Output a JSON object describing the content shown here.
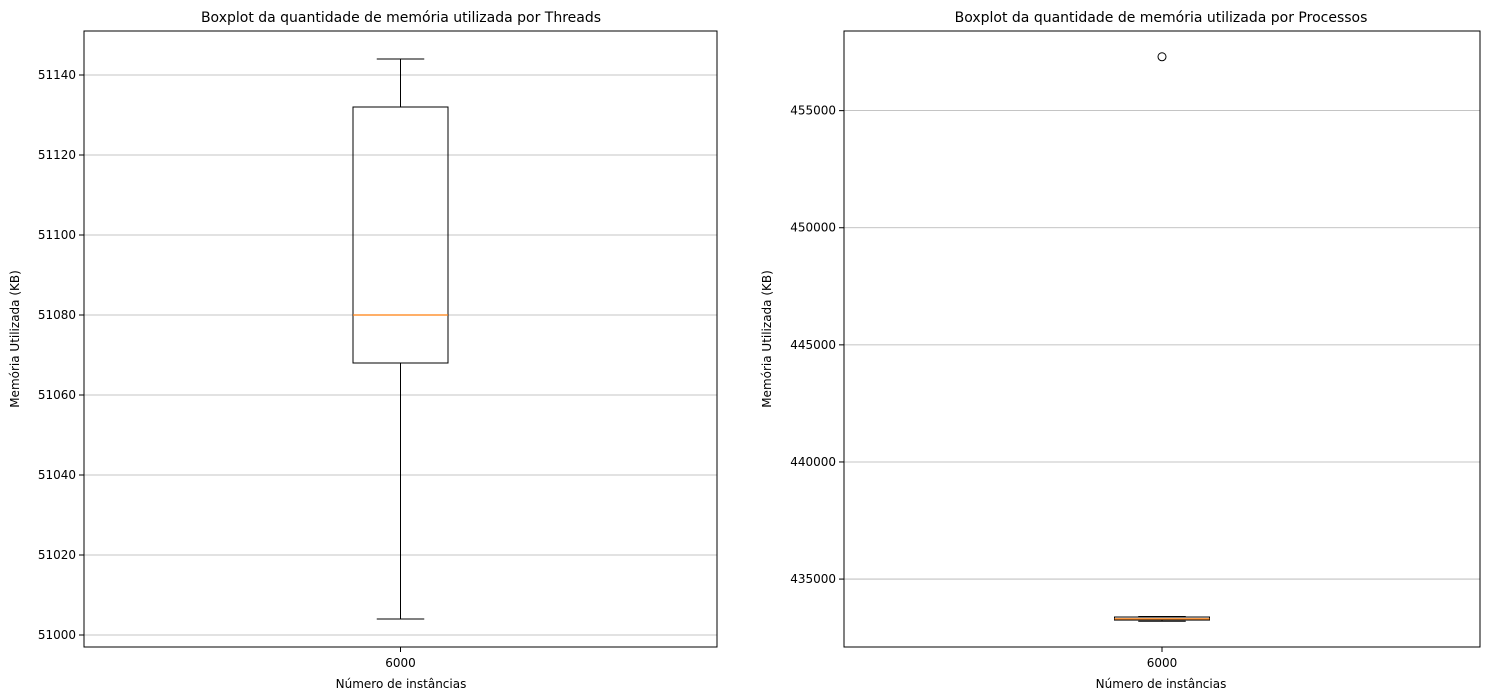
{
  "chart_data": [
    {
      "type": "boxplot",
      "title": "Boxplot da quantidade de memória utilizada por Threads",
      "xlabel": "Número de instâncias",
      "ylabel": "Memória Utilizada (KB)",
      "categories": [
        "6000"
      ],
      "ylim": [
        50997,
        51151
      ],
      "yticks": [
        51000,
        51020,
        51040,
        51060,
        51080,
        51100,
        51120,
        51140
      ],
      "grid": "y",
      "boxes": [
        {
          "category": "6000",
          "whisker_low": 51004,
          "q1": 51068,
          "median": 51080,
          "q3": 51132,
          "whisker_high": 51144,
          "outliers": []
        }
      ]
    },
    {
      "type": "boxplot",
      "title": "Boxplot da quantidade de memória utilizada por Processos",
      "xlabel": "Número de instâncias",
      "ylabel": "Memória Utilizada (KB)",
      "categories": [
        "6000"
      ],
      "ylim": [
        432100,
        458400
      ],
      "yticks": [
        435000,
        440000,
        445000,
        450000,
        455000
      ],
      "grid": "y",
      "boxes": [
        {
          "category": "6000",
          "whisker_low": 433200,
          "q1": 433250,
          "median": 433300,
          "q3": 433380,
          "whisker_high": 433400,
          "outliers": [
            457300
          ]
        }
      ]
    }
  ],
  "colors": {
    "box": "#000000",
    "median": "#ff7f0e",
    "grid": "#b0b0b0"
  }
}
